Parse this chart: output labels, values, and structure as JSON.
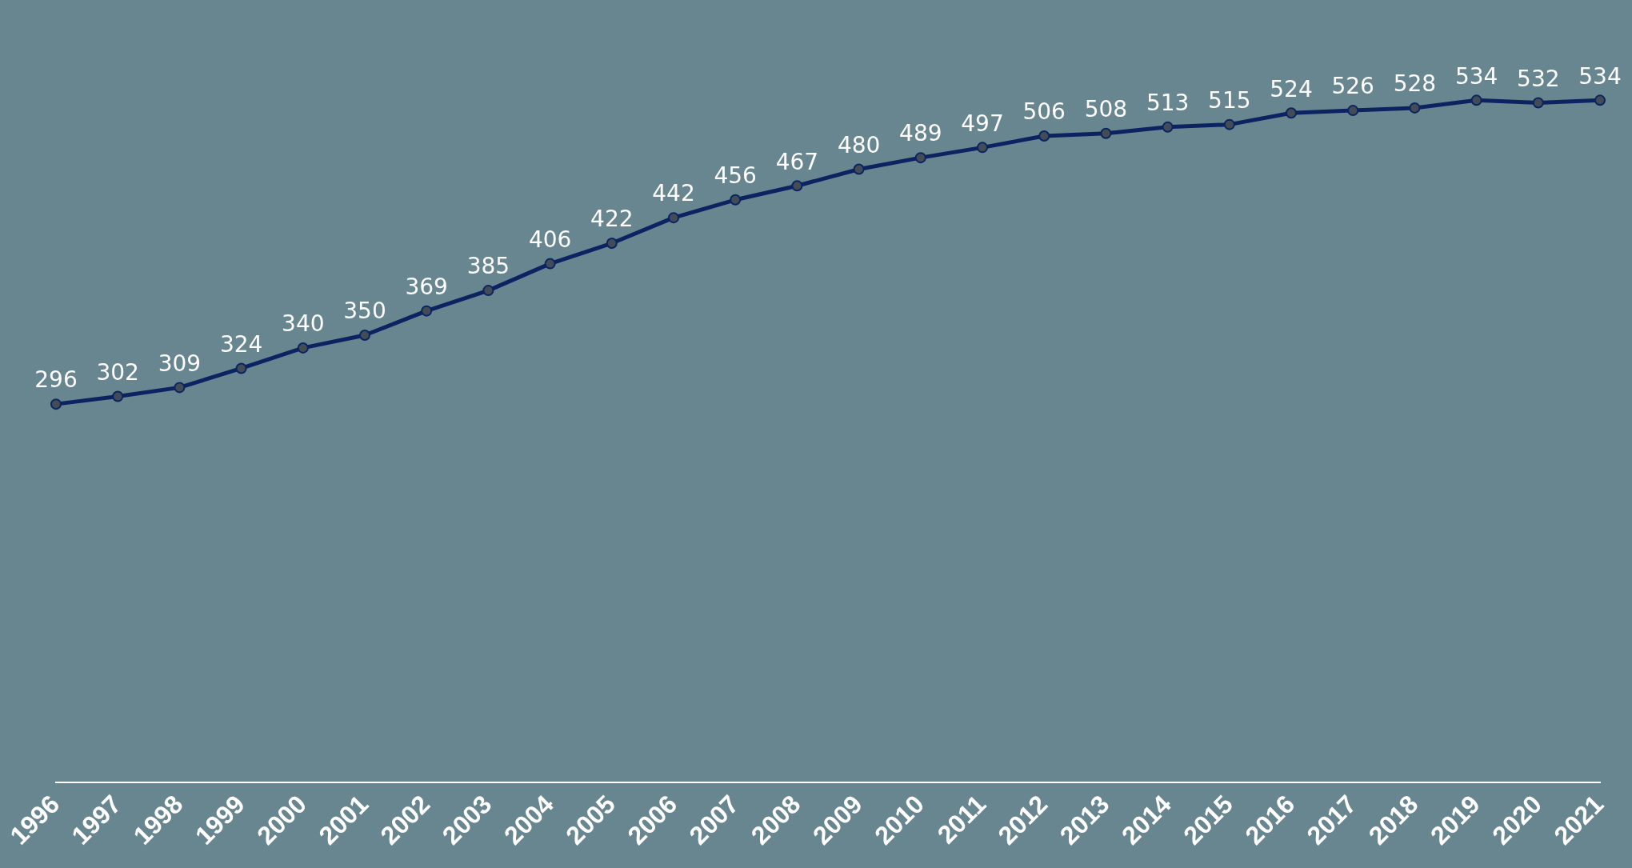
{
  "chart_data": {
    "type": "line",
    "categories": [
      "1996",
      "1997",
      "1998",
      "1999",
      "2000",
      "2001",
      "2002",
      "2003",
      "2004",
      "2005",
      "2006",
      "2007",
      "2008",
      "2009",
      "2010",
      "2011",
      "2012",
      "2013",
      "2014",
      "2015",
      "2016",
      "2017",
      "2018",
      "2019",
      "2020",
      "2021"
    ],
    "series": [
      {
        "color": "#0b2461",
        "values": [
          296,
          302,
          309,
          324,
          340,
          350,
          369,
          385,
          406,
          422,
          442,
          456,
          467,
          480,
          489,
          497,
          506,
          508,
          513,
          515,
          524,
          526,
          528,
          534,
          532,
          534
        ]
      }
    ],
    "tick_labels": "x",
    "grid": false,
    "legend": false,
    "marker": "circle",
    "line_style": "solid",
    "data_labels": true
  }
}
